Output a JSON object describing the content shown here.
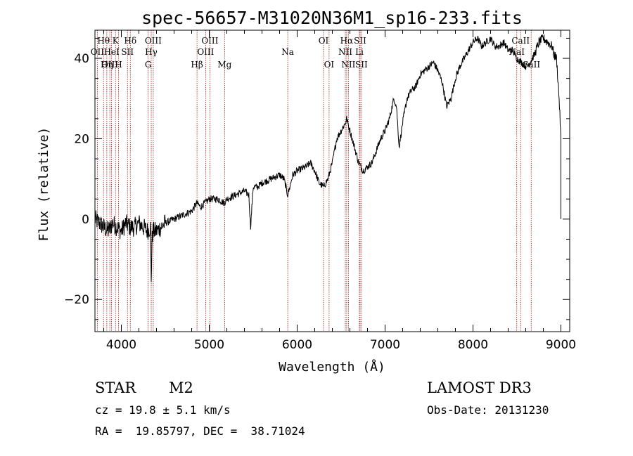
{
  "chart_data": {
    "type": "line",
    "title": "spec-56657-M31020N36M1_sp16-233.fits",
    "xlabel": "Wavelength (Å)",
    "ylabel": "Flux (relative)",
    "xlim": [
      3700,
      9100
    ],
    "ylim": [
      -28,
      47
    ],
    "xticks": [
      4000,
      5000,
      6000,
      7000,
      8000,
      9000
    ],
    "yticks": [
      -20,
      0,
      20,
      40
    ],
    "xtick_labels": [
      "4000",
      "5000",
      "6000",
      "7000",
      "8000",
      "9000"
    ],
    "ytick_labels": [
      "−20",
      "0",
      "20",
      "40"
    ],
    "grid": false,
    "series": [
      {
        "name": "flux",
        "x": [
          3700,
          3750,
          3800,
          3850,
          3900,
          3950,
          4000,
          4050,
          4100,
          4150,
          4200,
          4250,
          4300,
          4330,
          4340,
          4350,
          4360,
          4400,
          4500,
          4600,
          4700,
          4800,
          4860,
          4900,
          5000,
          5100,
          5170,
          5200,
          5300,
          5400,
          5450,
          5470,
          5500,
          5550,
          5600,
          5700,
          5800,
          5850,
          5893,
          5950,
          6000,
          6100,
          6150,
          6200,
          6250,
          6300,
          6350,
          6400,
          6450,
          6500,
          6550,
          6563,
          6600,
          6650,
          6700,
          6750,
          6800,
          6850,
          6900,
          6950,
          7000,
          7050,
          7100,
          7130,
          7160,
          7200,
          7250,
          7300,
          7350,
          7400,
          7450,
          7500,
          7550,
          7600,
          7650,
          7700,
          7750,
          7800,
          7850,
          7900,
          7950,
          8000,
          8050,
          8100,
          8150,
          8200,
          8250,
          8300,
          8350,
          8400,
          8450,
          8500,
          8550,
          8600,
          8650,
          8700,
          8750,
          8800,
          8850,
          8900,
          8920,
          8950,
          8980,
          9000,
          9000,
          9000
        ],
        "values": [
          0,
          -1,
          -2,
          -3,
          -1,
          -2,
          -3,
          -1,
          -2,
          -2,
          -1,
          -2,
          -3,
          -2,
          -15,
          -5,
          -3,
          -3,
          -1,
          0,
          1,
          2,
          4,
          3,
          5,
          5,
          4,
          5,
          6,
          7,
          6,
          -2,
          8,
          8,
          9,
          10,
          11,
          10,
          6,
          11,
          12,
          13,
          14,
          12,
          9,
          8,
          10,
          14,
          20,
          22,
          24,
          25,
          22,
          18,
          14,
          12,
          13,
          14,
          17,
          20,
          22,
          25,
          30,
          28,
          18,
          24,
          30,
          32,
          33,
          36,
          37,
          38,
          39,
          37,
          34,
          28,
          30,
          35,
          38,
          40,
          42,
          44,
          45,
          43,
          44,
          45,
          43,
          43,
          44,
          42,
          42,
          40,
          39,
          38,
          39,
          41,
          44,
          45,
          44,
          43,
          41,
          40,
          30,
          20,
          10,
          0
        ]
      }
    ],
    "line_markers": [
      {
        "label": "Hθ",
        "wavelength": 3798,
        "row": 1
      },
      {
        "label": "OII",
        "wavelength": 3727,
        "row": 2
      },
      {
        "label": "OIII",
        "wavelength": 3869,
        "row": 3
      },
      {
        "label": "K",
        "wavelength": 3934,
        "row": 1
      },
      {
        "label": "HeI",
        "wavelength": 3889,
        "row": 2
      },
      {
        "label": "Hη",
        "wavelength": 3835,
        "row": 3
      },
      {
        "label": "Hδ",
        "wavelength": 4102,
        "row": 1
      },
      {
        "label": "SII",
        "wavelength": 4070,
        "row": 2
      },
      {
        "label": "H",
        "wavelength": 3968,
        "row": 3
      },
      {
        "label": "OIII",
        "wavelength": 4363,
        "row": 1
      },
      {
        "label": "Hγ",
        "wavelength": 4340,
        "row": 2
      },
      {
        "label": "G",
        "wavelength": 4305,
        "row": 3
      },
      {
        "label": "OIII",
        "wavelength": 5007,
        "row": 1
      },
      {
        "label": "OIII",
        "wavelength": 4959,
        "row": 2
      },
      {
        "label": "Hβ",
        "wavelength": 4861,
        "row": 3
      },
      {
        "label": "Mg",
        "wavelength": 5175,
        "row": 3
      },
      {
        "label": "Na",
        "wavelength": 5893,
        "row": 2
      },
      {
        "label": "OI",
        "wavelength": 6300,
        "row": 1
      },
      {
        "label": "OI",
        "wavelength": 6363,
        "row": 3
      },
      {
        "label": "Hα",
        "wavelength": 6563,
        "row": 1
      },
      {
        "label": "SII",
        "wavelength": 6716,
        "row": 1
      },
      {
        "label": "NII",
        "wavelength": 6548,
        "row": 2
      },
      {
        "label": "Li",
        "wavelength": 6708,
        "row": 2
      },
      {
        "label": "NII",
        "wavelength": 6583,
        "row": 3
      },
      {
        "label": "SII",
        "wavelength": 6731,
        "row": 3
      },
      {
        "label": "CaII",
        "wavelength": 8542,
        "row": 1
      },
      {
        "label": "NaI",
        "wavelength": 8498,
        "row": 2
      },
      {
        "label": "CaII",
        "wavelength": 8662,
        "row": 3
      }
    ],
    "line_colors": {
      "trace": "#000000",
      "marker": "#aa1111"
    }
  },
  "info": {
    "object_class": "STAR",
    "subclass": "M2",
    "survey": "LAMOST DR3",
    "cz": "cz = 19.8 ± 5.1 km/s",
    "obs_date": "Obs-Date: 20131230",
    "coords": "RA =  19.85797, DEC =  38.71024"
  }
}
